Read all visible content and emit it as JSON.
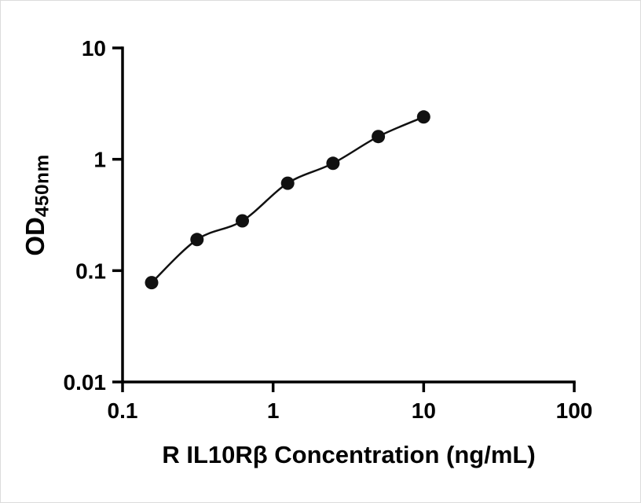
{
  "chart_data": {
    "type": "scatter",
    "title": "",
    "xlabel": "R IL10Rβ Concentration (ng/mL)",
    "ylabel": "OD450nm",
    "ylabel_main": "OD",
    "ylabel_sub": "450nm",
    "x": [
      0.156,
      0.3125,
      0.625,
      1.25,
      2.5,
      5,
      10
    ],
    "y": [
      0.078,
      0.19,
      0.28,
      0.61,
      0.92,
      1.6,
      2.4
    ],
    "x_scale": "log",
    "y_scale": "log",
    "xlim": [
      0.1,
      100
    ],
    "ylim": [
      0.01,
      10
    ],
    "x_ticks": [
      0.1,
      1,
      10,
      100
    ],
    "x_tick_labels": [
      "0.1",
      "1",
      "10",
      "100"
    ],
    "y_ticks": [
      0.01,
      0.1,
      1,
      10
    ],
    "y_tick_labels": [
      "0.01",
      "0.1",
      "1",
      "10"
    ],
    "has_fit_line": true,
    "grid": false,
    "legend": false,
    "axis_color": "#000000",
    "line_color": "#111111",
    "marker_color": "#111111",
    "background_color": "#ffffff"
  }
}
